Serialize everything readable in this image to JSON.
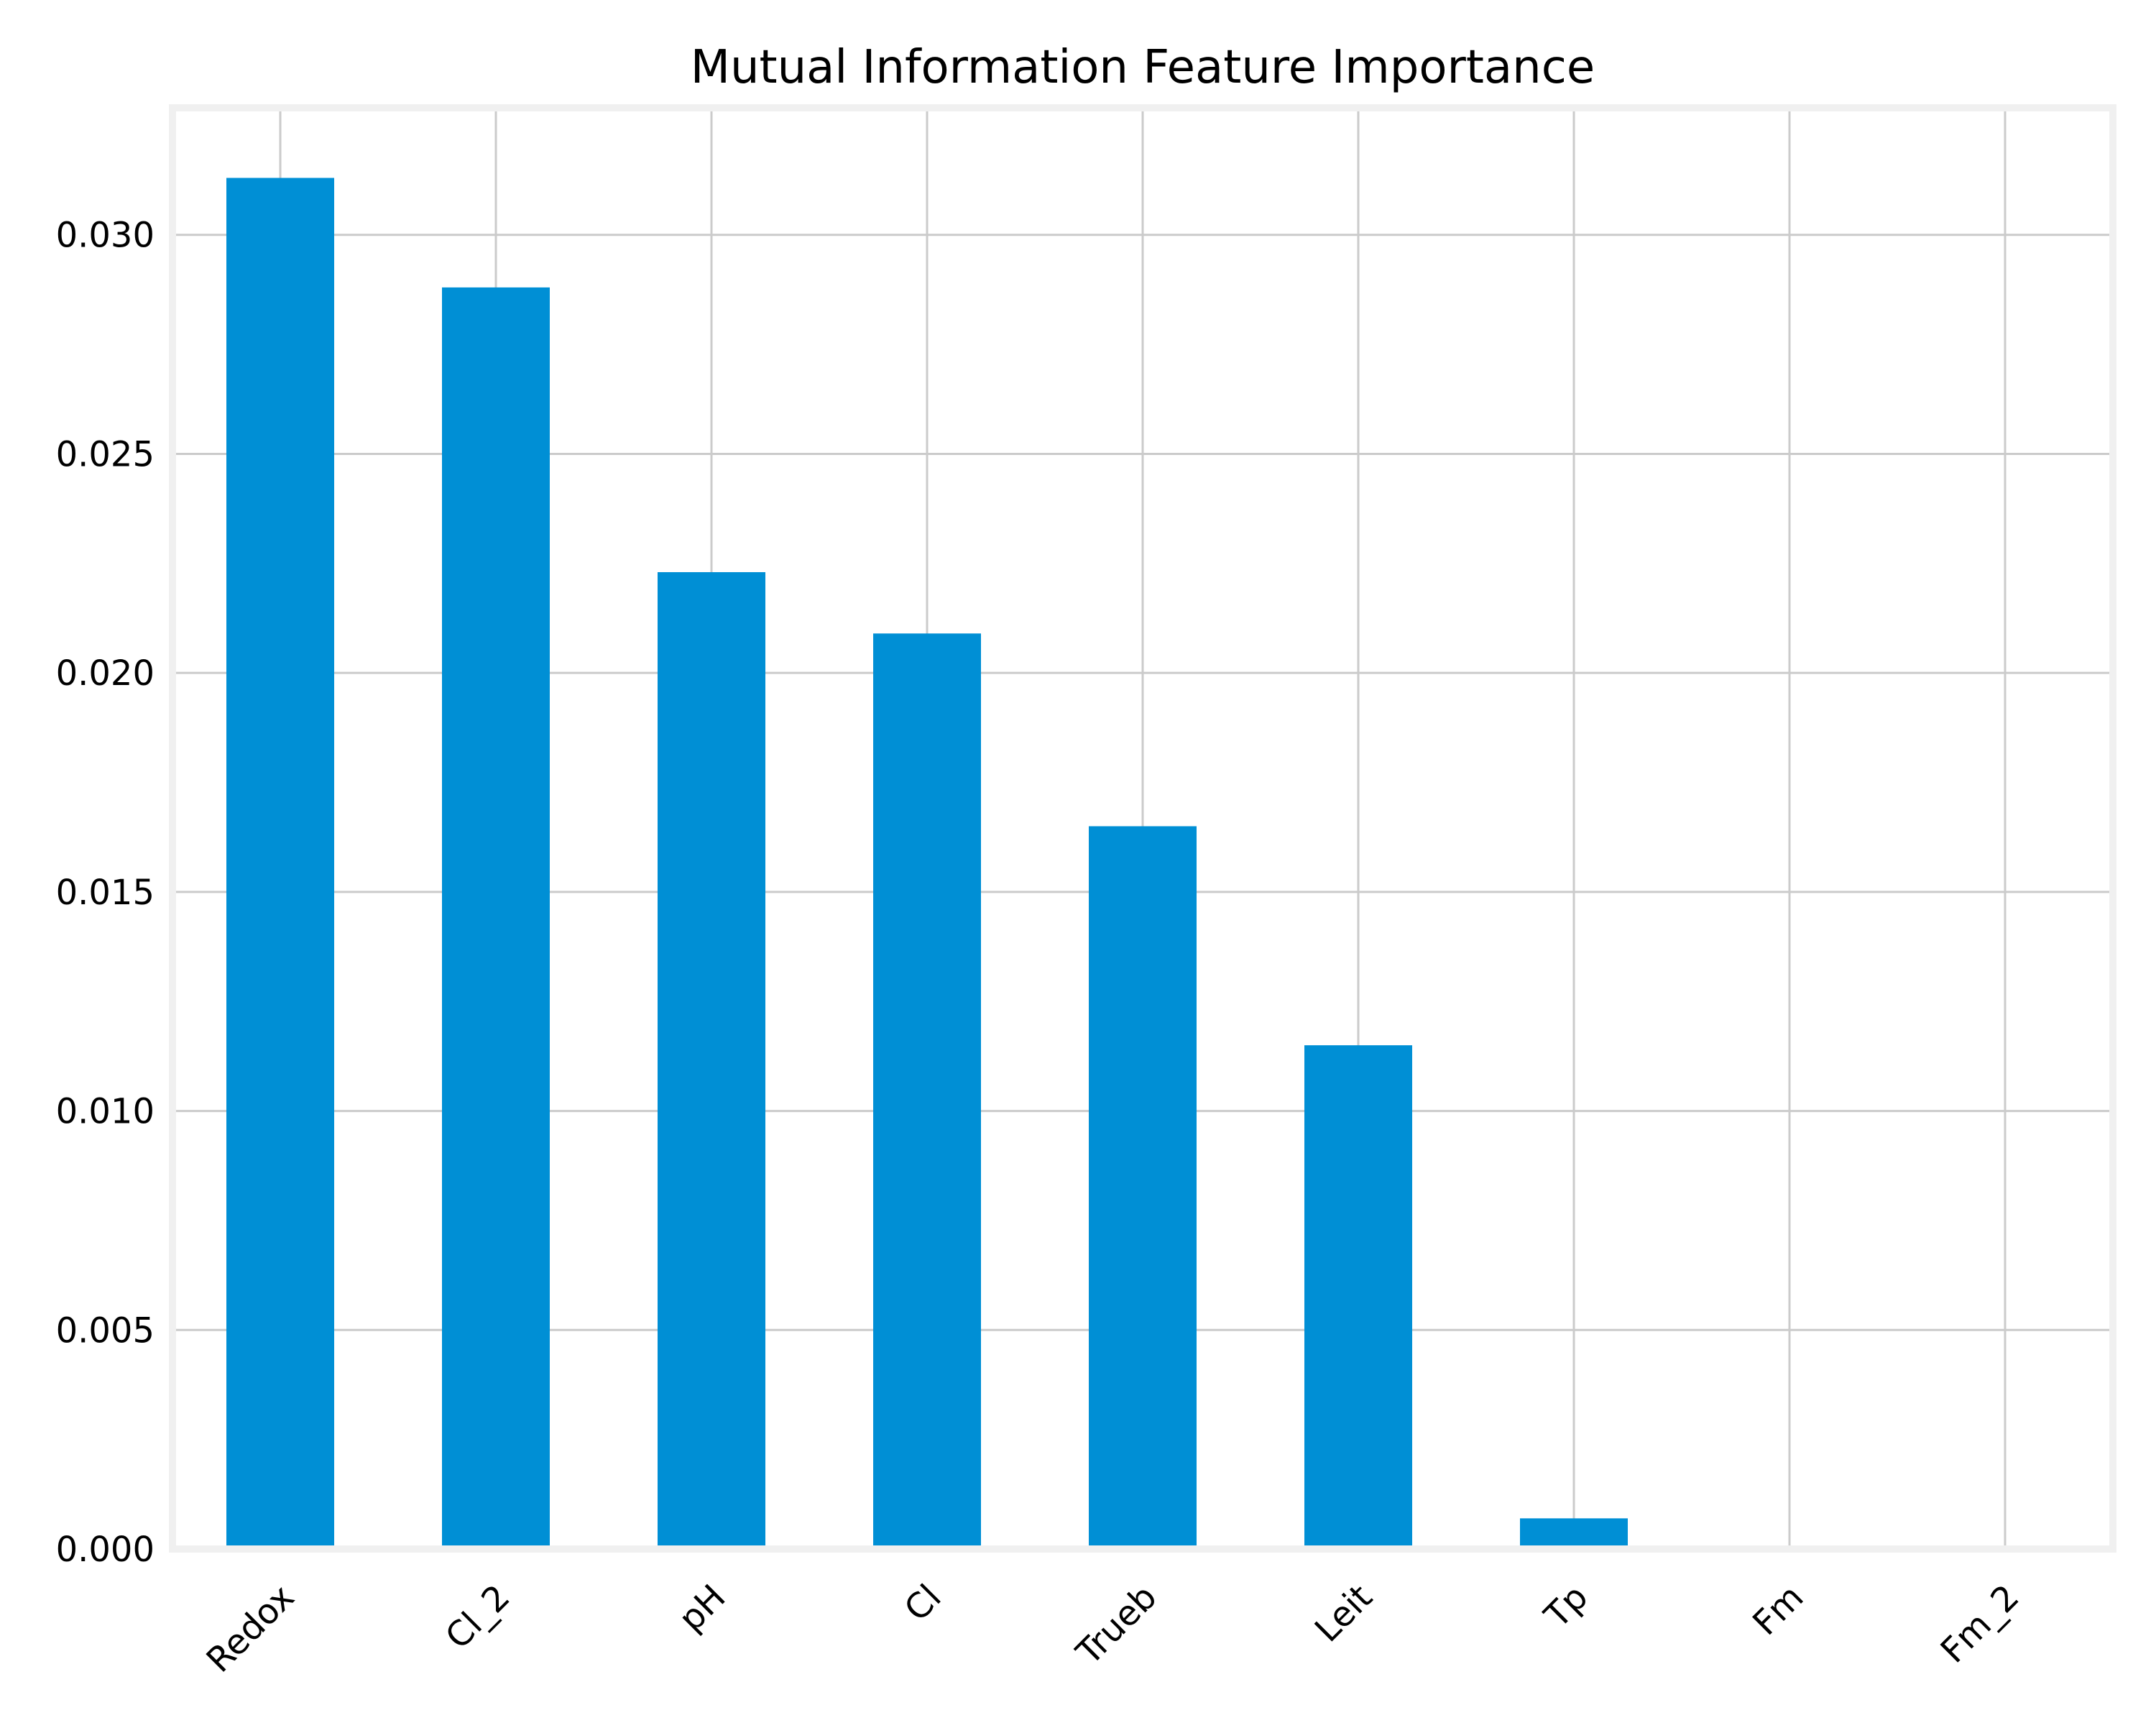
{
  "chart_data": {
    "type": "bar",
    "title": "Mutual Information Feature Importance",
    "xlabel": "",
    "ylabel": "",
    "categories": [
      "Redox",
      "Cl_2",
      "pH",
      "Cl",
      "Trueb",
      "Leit",
      "Tp",
      "Fm",
      "Fm_2"
    ],
    "values": [
      0.0313,
      0.0288,
      0.0223,
      0.0209,
      0.0165,
      0.0115,
      0.0007,
      0.0,
      0.0
    ],
    "ylim": [
      0.0,
      0.0329
    ],
    "yticks": [
      0.0,
      0.005,
      0.01,
      0.015,
      0.02,
      0.025,
      0.03
    ],
    "ytick_labels": [
      "0.000",
      "0.005",
      "0.010",
      "0.015",
      "0.020",
      "0.025",
      "0.030"
    ],
    "grid": true,
    "bar_color": "#008fd5",
    "grid_color": "#cbcbcb",
    "frame_color": "#f0f0f0",
    "background_color": "#ffffff",
    "text_color": "#000000"
  }
}
